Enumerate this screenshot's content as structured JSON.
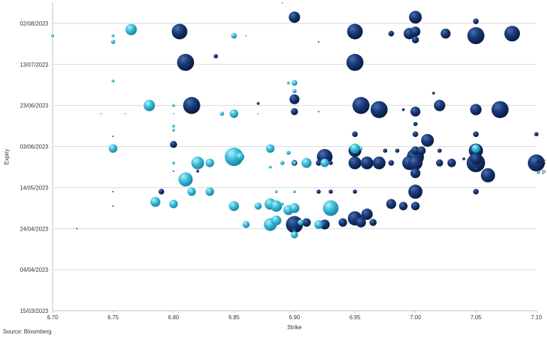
{
  "chart_data": {
    "type": "scatter",
    "xlabel": "Strike",
    "ylabel": "Expiry",
    "xlim": [
      6.7,
      7.1
    ],
    "x_ticks": [
      "6.70",
      "6.75",
      "6.80",
      "6.85",
      "6.90",
      "6.95",
      "7.00",
      "7.05",
      "7.10"
    ],
    "ylim": [
      "2023-03-15",
      "2023-08-12"
    ],
    "y_ticks": [
      {
        "date": "2023-03-15",
        "label": "15/03/2023"
      },
      {
        "date": "2023-04-04",
        "label": "04/04/2023"
      },
      {
        "date": "2023-04-24",
        "label": "24/04/2023"
      },
      {
        "date": "2023-05-14",
        "label": "14/05/2023"
      },
      {
        "date": "2023-06-03",
        "label": "03/06/2023"
      },
      {
        "date": "2023-06-23",
        "label": "23/06/2023"
      },
      {
        "date": "2023-07-13",
        "label": "13/07/2023"
      },
      {
        "date": "2023-08-02",
        "label": "02/08/2023"
      }
    ],
    "grid": "horizontal",
    "legend_position": "right",
    "source": "Source: Bloomberg",
    "series": [
      {
        "name": "C",
        "color": "#0e2a5e",
        "points": [
          [
            6.9,
            "2023-08-05",
            8
          ],
          [
            7.0,
            "2023-08-05",
            9
          ],
          [
            7.05,
            "2023-08-03",
            4
          ],
          [
            6.805,
            "2023-07-29",
            11
          ],
          [
            6.95,
            "2023-07-29",
            11
          ],
          [
            6.98,
            "2023-07-28",
            4
          ],
          [
            6.995,
            "2023-07-28",
            8
          ],
          [
            7.0,
            "2023-07-29",
            7
          ],
          [
            7.025,
            "2023-07-28",
            7
          ],
          [
            7.05,
            "2023-07-27",
            12
          ],
          [
            7.08,
            "2023-07-28",
            11
          ],
          [
            7.0,
            "2023-07-25",
            5
          ],
          [
            6.81,
            "2023-07-14",
            12
          ],
          [
            6.95,
            "2023-07-14",
            12
          ],
          [
            6.835,
            "2023-07-17",
            3
          ],
          [
            6.92,
            "2023-07-24",
            1
          ],
          [
            7.015,
            "2023-06-29",
            2
          ],
          [
            6.9,
            "2023-06-26",
            7
          ],
          [
            6.87,
            "2023-06-24",
            2
          ],
          [
            6.9,
            "2023-06-20",
            5
          ],
          [
            6.92,
            "2023-06-20",
            1
          ],
          [
            6.815,
            "2023-06-23",
            12
          ],
          [
            6.955,
            "2023-06-23",
            12
          ],
          [
            6.97,
            "2023-06-21",
            12
          ],
          [
            6.99,
            "2023-06-21",
            2
          ],
          [
            7.0,
            "2023-06-20",
            7
          ],
          [
            7.02,
            "2023-06-23",
            8
          ],
          [
            7.05,
            "2023-06-21",
            8
          ],
          [
            7.07,
            "2023-06-21",
            12
          ],
          [
            7.0,
            "2023-06-14",
            3
          ],
          [
            6.75,
            "2023-06-08",
            1
          ],
          [
            6.8,
            "2023-06-04",
            5
          ],
          [
            6.95,
            "2023-06-09",
            4
          ],
          [
            7.0,
            "2023-06-09",
            4
          ],
          [
            7.05,
            "2023-06-09",
            4
          ],
          [
            7.01,
            "2023-06-06",
            9
          ],
          [
            7.1,
            "2023-06-09",
            3
          ],
          [
            6.95,
            "2023-06-01",
            9
          ],
          [
            6.975,
            "2023-06-01",
            3
          ],
          [
            6.985,
            "2023-06-01",
            3
          ],
          [
            7.0,
            "2023-06-01",
            6
          ],
          [
            7.005,
            "2023-06-01",
            6
          ],
          [
            7.02,
            "2023-06-01",
            3
          ],
          [
            7.05,
            "2023-06-01",
            10
          ],
          [
            6.925,
            "2023-05-29",
            11
          ],
          [
            7.0,
            "2023-05-29",
            12
          ],
          [
            7.05,
            "2023-05-28",
            8
          ],
          [
            7.04,
            "2023-05-28",
            2
          ],
          [
            6.92,
            "2023-05-26",
            4
          ],
          [
            6.93,
            "2023-05-26",
            3
          ],
          [
            6.95,
            "2023-05-26",
            9
          ],
          [
            6.96,
            "2023-05-26",
            9
          ],
          [
            6.97,
            "2023-05-26",
            9
          ],
          [
            6.98,
            "2023-05-26",
            4
          ],
          [
            6.995,
            "2023-05-26",
            10
          ],
          [
            7.0,
            "2023-05-26",
            10
          ],
          [
            7.02,
            "2023-05-26",
            5
          ],
          [
            7.03,
            "2023-05-26",
            6
          ],
          [
            7.05,
            "2023-05-26",
            13
          ],
          [
            7.1,
            "2023-05-26",
            12
          ],
          [
            6.9,
            "2023-05-26",
            4
          ],
          [
            6.91,
            "2023-05-26",
            2
          ],
          [
            7.0,
            "2023-05-21",
            7
          ],
          [
            7.06,
            "2023-05-20",
            10
          ],
          [
            7.05,
            "2023-05-23",
            2
          ],
          [
            6.8,
            "2023-05-22",
            1
          ],
          [
            6.82,
            "2023-05-22",
            2
          ],
          [
            6.79,
            "2023-05-12",
            4
          ],
          [
            6.92,
            "2023-05-12",
            3
          ],
          [
            6.93,
            "2023-05-12",
            3
          ],
          [
            6.95,
            "2023-05-12",
            3
          ],
          [
            7.0,
            "2023-05-12",
            10
          ],
          [
            7.05,
            "2023-05-12",
            4
          ],
          [
            6.75,
            "2023-05-12",
            1
          ],
          [
            6.75,
            "2023-05-05",
            1
          ],
          [
            6.98,
            "2023-05-06",
            7
          ],
          [
            6.99,
            "2023-05-05",
            6
          ],
          [
            7.0,
            "2023-05-05",
            6
          ],
          [
            6.96,
            "2023-05-01",
            8
          ],
          [
            6.95,
            "2023-04-29",
            10
          ],
          [
            6.72,
            "2023-04-24",
            1
          ],
          [
            6.9,
            "2023-04-26",
            12
          ],
          [
            6.91,
            "2023-04-27",
            6
          ],
          [
            6.92,
            "2023-04-26",
            6
          ],
          [
            6.925,
            "2023-04-26",
            7
          ],
          [
            6.94,
            "2023-04-27",
            6
          ],
          [
            6.955,
            "2023-04-27",
            7
          ],
          [
            6.965,
            "2023-04-27",
            5
          ],
          [
            6.9,
            "2023-04-23",
            3
          ]
        ]
      },
      {
        "name": "P",
        "color": "#3cbfdc",
        "points": [
          [
            6.89,
            "2023-08-12",
            1
          ],
          [
            6.7,
            "2023-07-27",
            2
          ],
          [
            6.75,
            "2023-07-27",
            2
          ],
          [
            6.765,
            "2023-07-30",
            8
          ],
          [
            6.75,
            "2023-07-24",
            3
          ],
          [
            6.85,
            "2023-07-27",
            4
          ],
          [
            6.86,
            "2023-07-27",
            1
          ],
          [
            6.75,
            "2023-07-05",
            2
          ],
          [
            6.895,
            "2023-07-04",
            2
          ],
          [
            6.9,
            "2023-07-04",
            4
          ],
          [
            6.9,
            "2023-06-30",
            3
          ],
          [
            6.74,
            "2023-06-19",
            1
          ],
          [
            6.76,
            "2023-06-19",
            1
          ],
          [
            6.78,
            "2023-06-23",
            8
          ],
          [
            6.8,
            "2023-06-23",
            2
          ],
          [
            6.8,
            "2023-06-19",
            1
          ],
          [
            6.8,
            "2023-06-11",
            2
          ],
          [
            6.8,
            "2023-06-13",
            2
          ],
          [
            6.84,
            "2023-06-19",
            3
          ],
          [
            6.85,
            "2023-06-19",
            6
          ],
          [
            6.87,
            "2023-06-19",
            1
          ],
          [
            6.75,
            "2023-06-02",
            6
          ],
          [
            6.82,
            "2023-05-26",
            9
          ],
          [
            6.83,
            "2023-05-26",
            6
          ],
          [
            6.85,
            "2023-05-29",
            13
          ],
          [
            6.855,
            "2023-05-29",
            6
          ],
          [
            6.88,
            "2023-06-02",
            6
          ],
          [
            6.89,
            "2023-05-26",
            3
          ],
          [
            6.895,
            "2023-05-31",
            3
          ],
          [
            6.9,
            "2023-05-26",
            3
          ],
          [
            6.91,
            "2023-05-26",
            7
          ],
          [
            6.925,
            "2023-05-26",
            6
          ],
          [
            6.95,
            "2023-06-02",
            7
          ],
          [
            6.955,
            "2023-06-02",
            2
          ],
          [
            7.05,
            "2023-06-02",
            6
          ],
          [
            6.8,
            "2023-05-26",
            2
          ],
          [
            6.88,
            "2023-05-24",
            2
          ],
          [
            6.81,
            "2023-05-18",
            10
          ],
          [
            6.815,
            "2023-05-12",
            6
          ],
          [
            6.83,
            "2023-05-12",
            6
          ],
          [
            6.885,
            "2023-05-12",
            2
          ],
          [
            6.9,
            "2023-05-12",
            2
          ],
          [
            6.785,
            "2023-05-07",
            7
          ],
          [
            6.8,
            "2023-05-06",
            6
          ],
          [
            6.85,
            "2023-05-05",
            7
          ],
          [
            6.87,
            "2023-05-05",
            5
          ],
          [
            6.88,
            "2023-05-06",
            8
          ],
          [
            6.885,
            "2023-05-05",
            8
          ],
          [
            6.89,
            "2023-05-06",
            2
          ],
          [
            6.895,
            "2023-05-03",
            7
          ],
          [
            6.9,
            "2023-05-04",
            7
          ],
          [
            6.93,
            "2023-05-04",
            11
          ],
          [
            6.86,
            "2023-04-26",
            5
          ],
          [
            6.88,
            "2023-04-26",
            9
          ],
          [
            6.885,
            "2023-04-28",
            7
          ],
          [
            6.92,
            "2023-04-26",
            6
          ],
          [
            6.9,
            "2023-04-21",
            5
          ],
          [
            6.905,
            "2023-04-27",
            4
          ]
        ]
      }
    ]
  }
}
